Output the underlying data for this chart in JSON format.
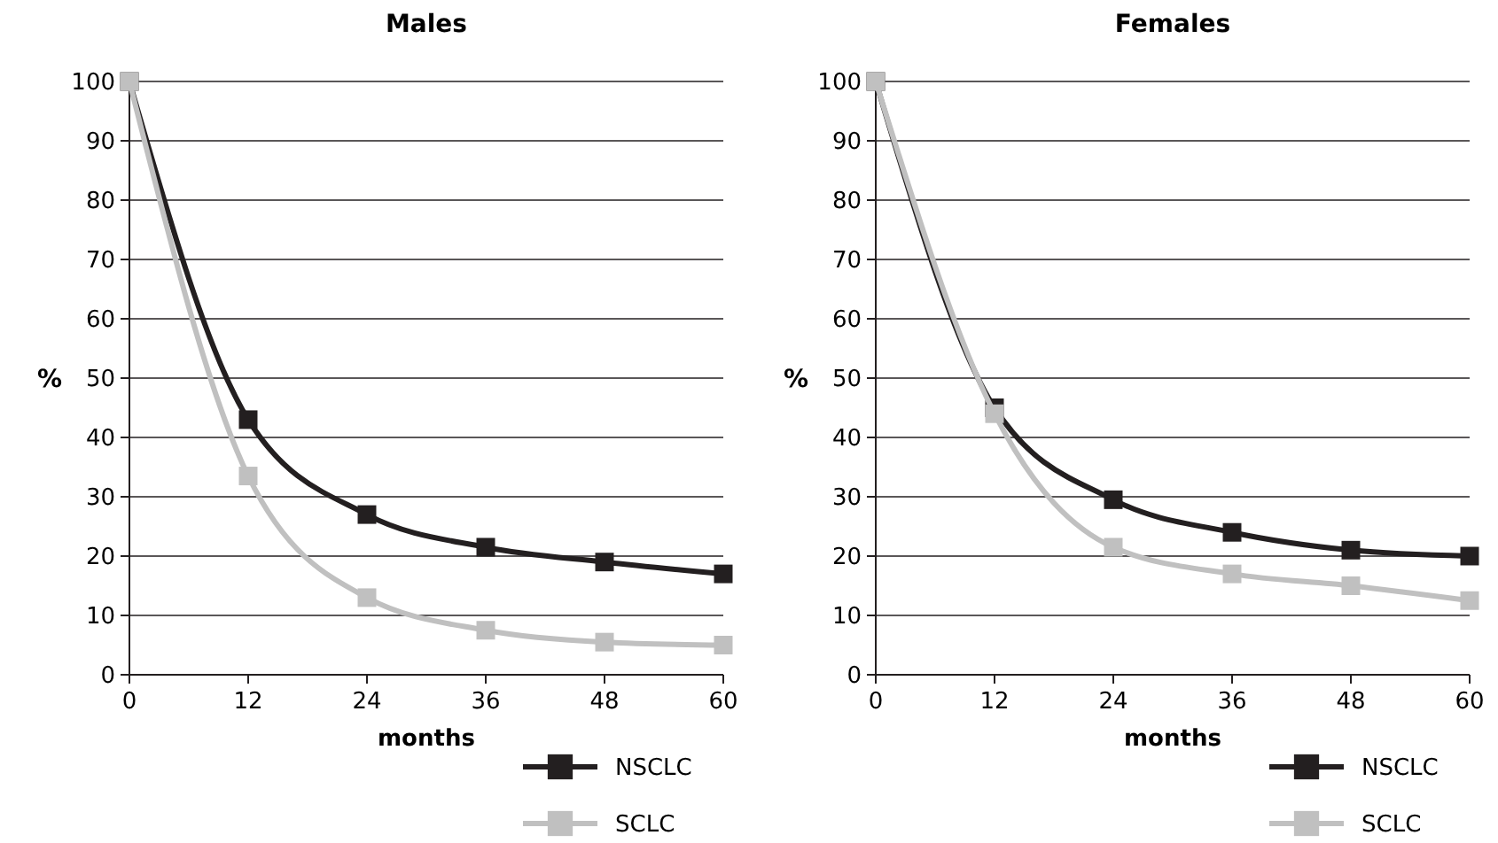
{
  "chart_data": [
    {
      "type": "line",
      "title": "Males",
      "xlabel": "months",
      "ylabel": "%",
      "x": [
        0,
        12,
        24,
        36,
        48,
        60
      ],
      "xlim": [
        0,
        60
      ],
      "xticks": [
        0,
        12,
        24,
        36,
        48,
        60
      ],
      "ylim": [
        0,
        100
      ],
      "yticks": [
        0,
        10,
        20,
        30,
        40,
        50,
        60,
        70,
        80,
        90,
        100
      ],
      "grid": "y",
      "legend": "bottom right",
      "marker": "square",
      "line_style": "solid",
      "series": [
        {
          "name": "NSCLC",
          "color": "#231f20",
          "values": [
            100,
            43,
            27,
            21.5,
            19,
            17
          ]
        },
        {
          "name": "SCLC",
          "color": "#c0c0c0",
          "values": [
            100,
            33.5,
            13,
            7.5,
            5.5,
            5
          ]
        }
      ]
    },
    {
      "type": "line",
      "title": "Females",
      "xlabel": "months",
      "ylabel": "%",
      "x": [
        0,
        12,
        24,
        36,
        48,
        60
      ],
      "xlim": [
        0,
        60
      ],
      "xticks": [
        0,
        12,
        24,
        36,
        48,
        60
      ],
      "ylim": [
        0,
        100
      ],
      "yticks": [
        0,
        10,
        20,
        30,
        40,
        50,
        60,
        70,
        80,
        90,
        100
      ],
      "grid": "y",
      "legend": "bottom right",
      "marker": "square",
      "line_style": "solid",
      "series": [
        {
          "name": "NSCLC",
          "color": "#231f20",
          "values": [
            100,
            45,
            29.5,
            24,
            21,
            20
          ]
        },
        {
          "name": "SCLC",
          "color": "#c0c0c0",
          "values": [
            100,
            44,
            21.5,
            17,
            15,
            12.5
          ]
        }
      ]
    }
  ]
}
